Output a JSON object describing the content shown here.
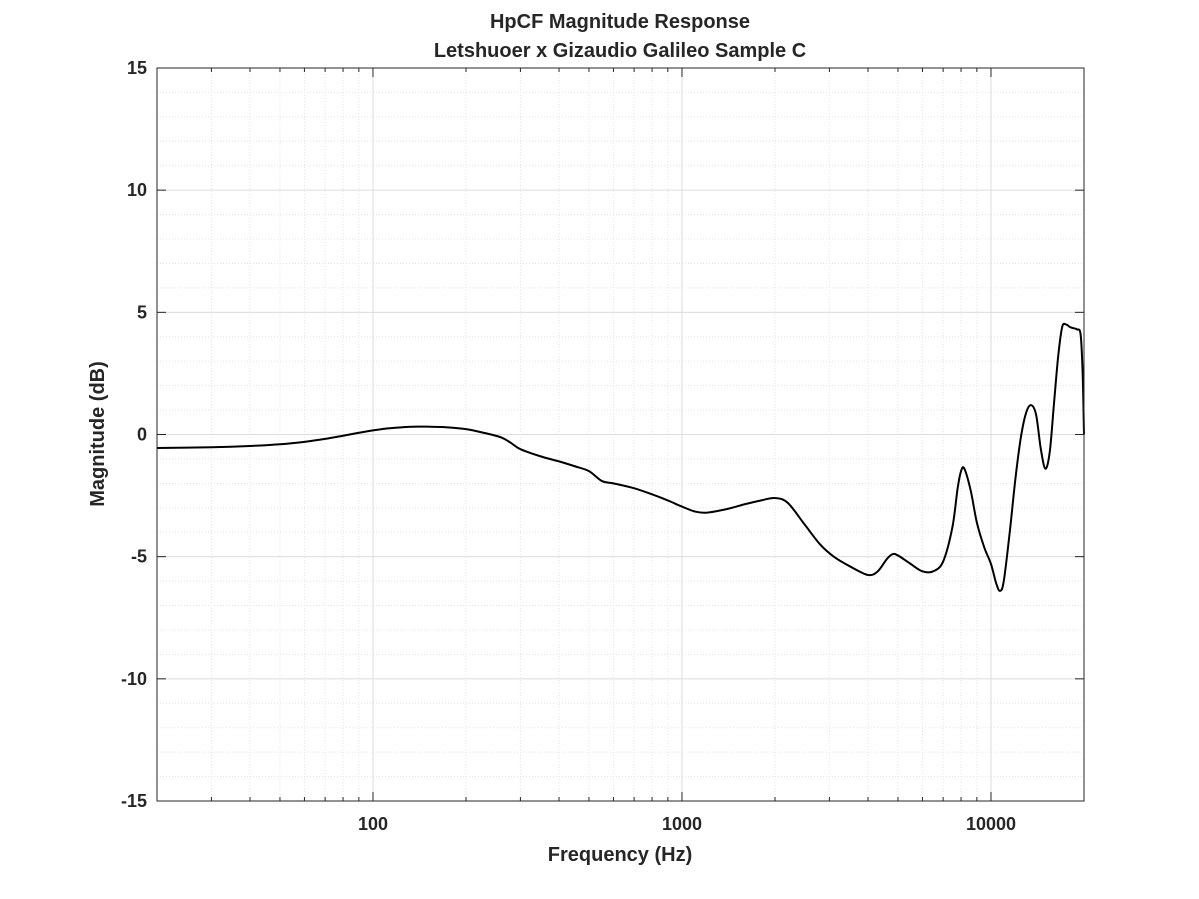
{
  "chart_data": {
    "type": "line",
    "title": "HpCF Magnitude Response",
    "subtitle": "Letshuoer x Gizaudio Galileo  Sample C",
    "xlabel": "Frequency (Hz)",
    "ylabel": "Magnitude (dB)",
    "xscale": "log",
    "xlim": [
      20,
      20000
    ],
    "ylim": [
      -15,
      15
    ],
    "grid": true,
    "minor_grid": true,
    "x_ticks": [
      {
        "value": 100,
        "label": "100"
      },
      {
        "value": 1000,
        "label": "1000"
      },
      {
        "value": 10000,
        "label": "10000"
      }
    ],
    "y_ticks": [
      {
        "value": -15,
        "label": "-15"
      },
      {
        "value": -10,
        "label": "-10"
      },
      {
        "value": -5,
        "label": "-5"
      },
      {
        "value": 0,
        "label": "0"
      },
      {
        "value": 5,
        "label": "5"
      },
      {
        "value": 10,
        "label": "10"
      },
      {
        "value": 15,
        "label": "15"
      }
    ],
    "series": [
      {
        "color": "#000000",
        "x": [
          20,
          30,
          40,
          50,
          60,
          70,
          80,
          90,
          100,
          110,
          120,
          130,
          140,
          150,
          170,
          200,
          230,
          260,
          280,
          300,
          350,
          400,
          450,
          500,
          550,
          600,
          700,
          800,
          900,
          1000,
          1100,
          1200,
          1400,
          1600,
          1800,
          2000,
          2200,
          2500,
          2800,
          3100,
          3500,
          4000,
          4300,
          4600,
          4800,
          5000,
          5500,
          6000,
          6500,
          7000,
          7500,
          7800,
          8000,
          8200,
          8600,
          9000,
          9500,
          10000,
          10400,
          10700,
          11000,
          11500,
          12000,
          12500,
          13000,
          13500,
          14000,
          14500,
          15000,
          15500,
          16000,
          16500,
          17000,
          17500,
          18000,
          18500,
          19000,
          19500,
          19800,
          20000
        ],
        "y": [
          -0.55,
          -0.52,
          -0.47,
          -0.4,
          -0.3,
          -0.18,
          -0.05,
          0.07,
          0.17,
          0.24,
          0.28,
          0.31,
          0.32,
          0.32,
          0.3,
          0.22,
          0.06,
          -0.12,
          -0.35,
          -0.6,
          -0.9,
          -1.1,
          -1.3,
          -1.5,
          -1.9,
          -2.0,
          -2.2,
          -2.45,
          -2.7,
          -2.95,
          -3.15,
          -3.2,
          -3.05,
          -2.85,
          -2.7,
          -2.6,
          -2.8,
          -3.7,
          -4.5,
          -5.0,
          -5.4,
          -5.75,
          -5.6,
          -5.1,
          -4.9,
          -4.95,
          -5.3,
          -5.6,
          -5.6,
          -5.2,
          -3.8,
          -2.2,
          -1.5,
          -1.4,
          -2.3,
          -3.6,
          -4.6,
          -5.3,
          -6.1,
          -6.4,
          -6.0,
          -4.0,
          -1.8,
          -0.1,
          0.9,
          1.2,
          0.8,
          -0.6,
          -1.4,
          -0.7,
          1.3,
          3.2,
          4.4,
          4.5,
          4.4,
          4.35,
          4.3,
          4.1,
          2.5,
          0.0
        ]
      }
    ]
  }
}
